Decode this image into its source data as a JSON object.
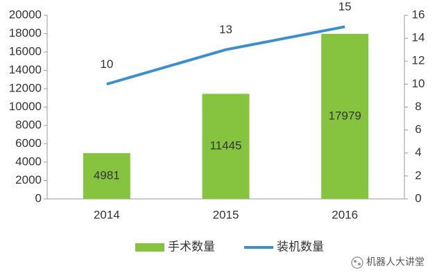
{
  "chart_data": {
    "type": "bar",
    "categories": [
      "2014",
      "2015",
      "2016"
    ],
    "series": [
      {
        "name": "手术数量",
        "type": "bar",
        "color": "#86c440",
        "values": [
          4981,
          11445,
          17979
        ]
      },
      {
        "name": "装机数量",
        "type": "line",
        "axis": "y2",
        "color": "#3d8fcc",
        "values": [
          10,
          13,
          15
        ]
      }
    ],
    "ylim": [
      0,
      20000
    ],
    "yticks": [
      0,
      2000,
      4000,
      6000,
      8000,
      10000,
      12000,
      14000,
      16000,
      18000,
      20000
    ],
    "y2lim": [
      0,
      16
    ],
    "y2ticks": [
      0,
      2,
      4,
      6,
      8,
      10,
      12,
      14,
      16
    ],
    "legend": "bottom",
    "watermark": "机器人大讲堂"
  }
}
